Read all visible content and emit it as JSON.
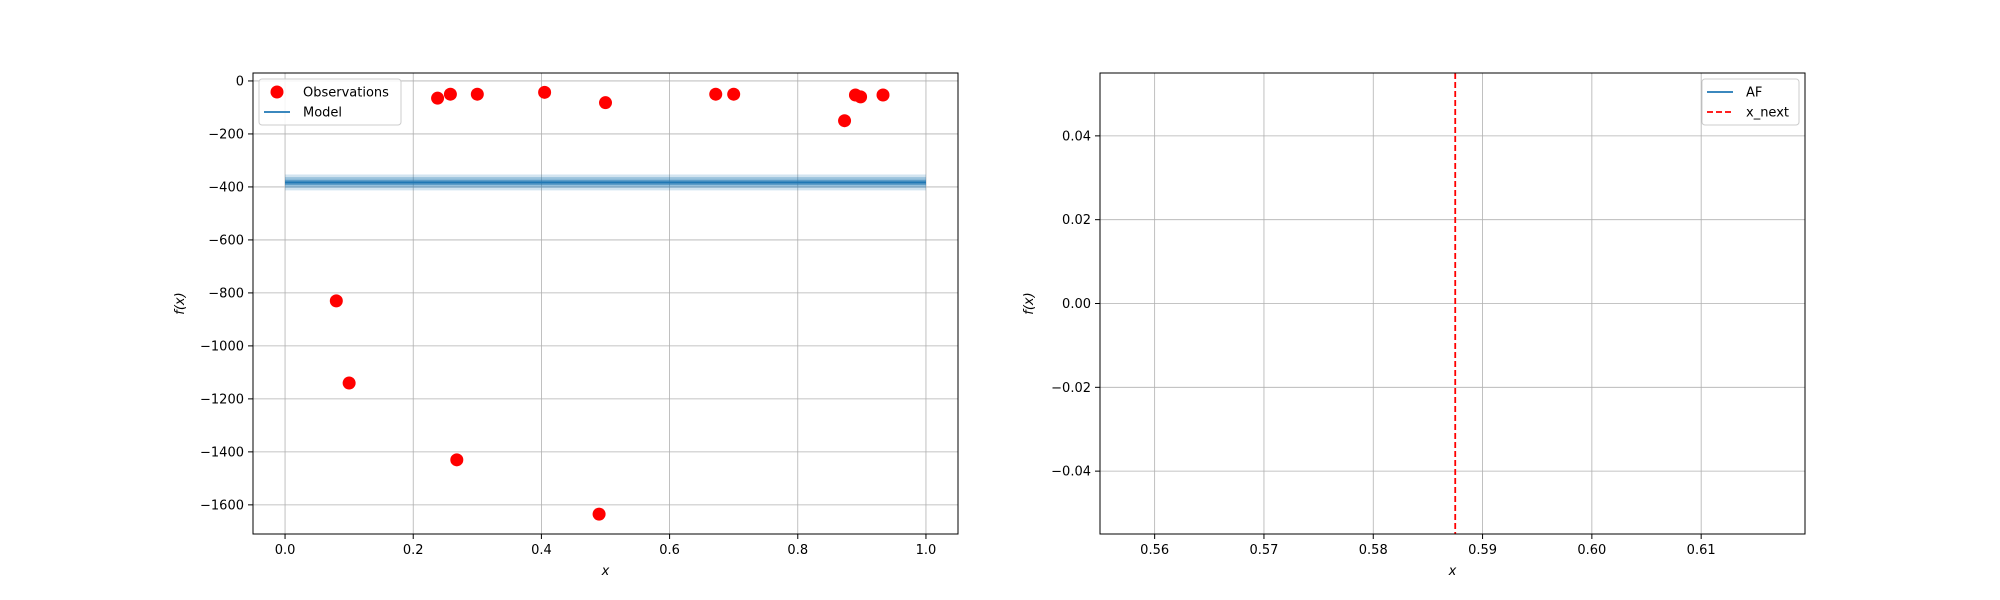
{
  "chart_data": [
    {
      "type": "scatter",
      "xlabel": "x",
      "ylabel": "f(x)",
      "xlim": [
        -0.05,
        1.05
      ],
      "ylim": [
        -1710,
        30
      ],
      "xticks": [
        0.0,
        0.2,
        0.4,
        0.6,
        0.8,
        1.0
      ],
      "xtick_labels": [
        "0.0",
        "0.2",
        "0.4",
        "0.6",
        "0.8",
        "1.0"
      ],
      "yticks": [
        0,
        -200,
        -400,
        -600,
        -800,
        -1000,
        -1200,
        -1400,
        -1600
      ],
      "ytick_labels": [
        "0",
        "−200",
        "−400",
        "−600",
        "−800",
        "−1000",
        "−1200",
        "−1400",
        "−1600"
      ],
      "grid": true,
      "legend_position": "top-left",
      "series": [
        {
          "name": "Observations",
          "kind": "scatter",
          "color": "#ff0000",
          "points": [
            {
              "x": 0.08,
              "y": -830
            },
            {
              "x": 0.1,
              "y": -1140
            },
            {
              "x": 0.238,
              "y": -65
            },
            {
              "x": 0.258,
              "y": -50
            },
            {
              "x": 0.268,
              "y": -1430
            },
            {
              "x": 0.3,
              "y": -50
            },
            {
              "x": 0.405,
              "y": -43
            },
            {
              "x": 0.49,
              "y": -1635
            },
            {
              "x": 0.5,
              "y": -82
            },
            {
              "x": 0.672,
              "y": -50
            },
            {
              "x": 0.7,
              "y": -50
            },
            {
              "x": 0.873,
              "y": -150
            },
            {
              "x": 0.89,
              "y": -53
            },
            {
              "x": 0.898,
              "y": -60
            },
            {
              "x": 0.933,
              "y": -53
            }
          ]
        },
        {
          "name": "Model",
          "kind": "line",
          "color": "#1f77b4",
          "x": [
            0.0,
            1.0
          ],
          "y": [
            -383,
            -383
          ],
          "bands": [
            {
              "lower": -413,
              "upper": -353,
              "opacity": 0.2
            },
            {
              "lower": -403,
              "upper": -363,
              "opacity": 0.3
            },
            {
              "lower": -393,
              "upper": -373,
              "opacity": 0.5
            }
          ]
        }
      ]
    },
    {
      "type": "line",
      "xlabel": "x",
      "ylabel": "f(x)",
      "xlim": [
        0.555,
        0.6195
      ],
      "ylim": [
        -0.055,
        0.055
      ],
      "xticks": [
        0.56,
        0.57,
        0.58,
        0.59,
        0.6,
        0.61
      ],
      "xtick_labels": [
        "0.56",
        "0.57",
        "0.58",
        "0.59",
        "0.60",
        "0.61"
      ],
      "yticks": [
        0.04,
        0.02,
        0.0,
        -0.02,
        -0.04
      ],
      "ytick_labels": [
        "0.04",
        "0.02",
        "0.00",
        "−0.02",
        "−0.04"
      ],
      "grid": true,
      "legend_position": "top-right",
      "series": [
        {
          "name": "AF",
          "kind": "line",
          "color": "#1f77b4",
          "x": [],
          "y": []
        },
        {
          "name": "x_next",
          "kind": "vline",
          "color": "#ff0000",
          "x": 0.5875
        }
      ]
    }
  ]
}
